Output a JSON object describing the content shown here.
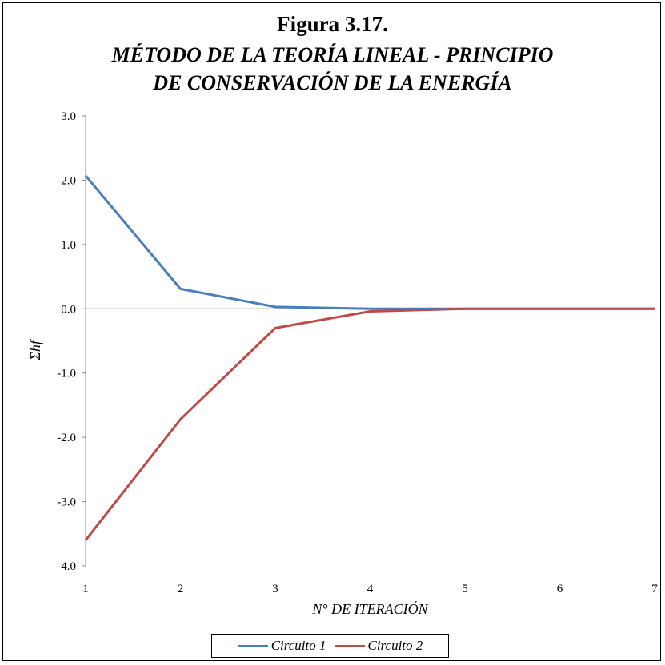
{
  "figure_label": "Figura 3.17.",
  "title_line1": "MÉTODO DE LA TEORÍA LINEAL - PRINCIPIO",
  "title_line2": "DE CONSERVACIÓN DE LA ENERGÍA",
  "chart_data": {
    "type": "line",
    "title": "MÉTODO DE LA TEORÍA LINEAL - PRINCIPIO DE CONSERVACIÓN DE LA ENERGÍA",
    "xlabel": "N° DE ITERACIÓN",
    "ylabel": "Σhf",
    "x": [
      1,
      2,
      3,
      4,
      5,
      6,
      7
    ],
    "xlim": [
      1,
      7
    ],
    "ylim": [
      -4.0,
      3.0
    ],
    "x_ticks": [
      "1",
      "2",
      "3",
      "4",
      "5",
      "6",
      "7"
    ],
    "y_ticks": [
      "3.0",
      "2.0",
      "1.0",
      "0.0",
      "-1.0",
      "-2.0",
      "-3.0",
      "-4.0"
    ],
    "y_tick_values": [
      3,
      2,
      1,
      0,
      -1,
      -2,
      -3,
      -4
    ],
    "grid": false,
    "legend_position": "bottom",
    "series": [
      {
        "name": "Circuito 1",
        "color": "#4a7ebb",
        "values": [
          2.07,
          0.31,
          0.03,
          0.0,
          0.0,
          0.0,
          0.0
        ]
      },
      {
        "name": "Circuito 2",
        "color": "#be4b48",
        "values": [
          -3.6,
          -1.72,
          -0.3,
          -0.04,
          0.0,
          0.0,
          0.0
        ]
      }
    ]
  }
}
